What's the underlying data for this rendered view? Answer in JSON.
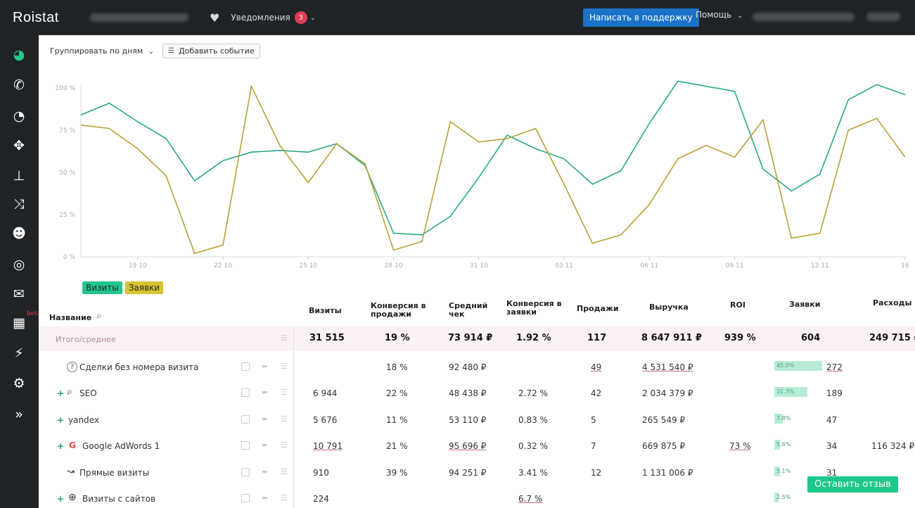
{
  "app": {
    "logo": "Roistat"
  },
  "topbar": {
    "notifications_label": "Уведомления",
    "notifications_count": "3",
    "support_label": "Написать в поддержку",
    "help_label": "Помощь"
  },
  "toolbar": {
    "group_by_label": "Группировать по дням",
    "add_event_label": "Добавить событие"
  },
  "sidebar": {
    "items": [
      {
        "name": "dashboard-icon",
        "glyph": "◕"
      },
      {
        "name": "phone-icon",
        "glyph": "✆"
      },
      {
        "name": "speedometer-icon",
        "glyph": "◔"
      },
      {
        "name": "crosshair-icon",
        "glyph": "✥"
      },
      {
        "name": "sitemap-icon",
        "glyph": "⊥"
      },
      {
        "name": "shuffle-icon",
        "glyph": "⤨"
      },
      {
        "name": "users-icon",
        "glyph": "☻"
      },
      {
        "name": "target-icon",
        "glyph": "◎"
      },
      {
        "name": "mail-icon",
        "glyph": "✉"
      },
      {
        "name": "report-icon",
        "glyph": "▦"
      },
      {
        "name": "plugin-icon",
        "glyph": "⚡"
      },
      {
        "name": "settings-icon",
        "glyph": "⚙"
      },
      {
        "name": "expand-icon",
        "glyph": "»"
      }
    ],
    "beta_label": "beta"
  },
  "colors": {
    "visits": "#2aa88a",
    "requests": "#b8a136",
    "accent": "#1ec78a"
  },
  "chart_data": {
    "type": "line",
    "x_tick_labels": [
      "19 10",
      "22 10",
      "25 10",
      "28 10",
      "31 10",
      "03 11",
      "06 11",
      "09 11",
      "12 11",
      "16"
    ],
    "y_tick_labels": [
      "100 %",
      "75 %",
      "50 %",
      "25 %",
      "0 %"
    ],
    "ylim": [
      0,
      100
    ],
    "series": [
      {
        "name": "Визиты",
        "color": "#2aa88a",
        "values": [
          84,
          91,
          80,
          70,
          45,
          57,
          62,
          63,
          62,
          67,
          54,
          14,
          13,
          24,
          47,
          72,
          64,
          58,
          43,
          51,
          79,
          104,
          101,
          98,
          52,
          39,
          49,
          93,
          102,
          96
        ]
      },
      {
        "name": "Заявки",
        "color": "#b8a136",
        "values": [
          78,
          76,
          64,
          48,
          2,
          7,
          101,
          66,
          44,
          67,
          55,
          4,
          9,
          80,
          68,
          70,
          76,
          43,
          8,
          13,
          31,
          58,
          66,
          59,
          81,
          11,
          14,
          75,
          82,
          59
        ]
      }
    ]
  },
  "legend": {
    "visits": "Визиты",
    "requests": "Заявки"
  },
  "table": {
    "name_header": "Название",
    "headers": {
      "visits": "Визиты",
      "conv_sales_1": "Конверсия в",
      "conv_sales_2": "продажи",
      "avg_check_1": "Средний",
      "avg_check_2": "чек",
      "conv_req_1": "Конверсия в",
      "conv_req_2": "заявки",
      "sales": "Продажи",
      "revenue": "Выручка",
      "roi": "ROI",
      "requests": "Заявки",
      "expenses": "Расходы"
    },
    "total": {
      "name": "Итого/среднее",
      "visits": "31 515",
      "conv_sales": "19 %",
      "avg_check": "73 914 ₽",
      "conv_req": "1.92 %",
      "sales": "117",
      "revenue": "8 647 911 ₽",
      "roi": "939 %",
      "requests": "604",
      "expenses": "249 715 ₽"
    },
    "rows": [
      {
        "name": "Сделки без номера визита",
        "visits": "",
        "conv_sales": "18 %",
        "avg_check": "92 480 ₽",
        "conv_req": "",
        "sales": "49",
        "revenue": "4 531 540 ₽",
        "roi": "",
        "req_pct": "45.0%",
        "req_share": 0.45,
        "requests": "272",
        "expenses": ""
      },
      {
        "name": "SEO",
        "visits": "6 944",
        "conv_sales": "22 %",
        "avg_check": "48 438 ₽",
        "conv_req": "2.72 %",
        "sales": "42",
        "revenue": "2 034 379 ₽",
        "roi": "",
        "req_pct": "31.3%",
        "req_share": 0.313,
        "requests": "189",
        "expenses": ""
      },
      {
        "name": "yandex",
        "visits": "5 676",
        "conv_sales": "11 %",
        "avg_check": "53 110 ₽",
        "conv_req": "0.83 %",
        "sales": "5",
        "revenue": "265 549 ₽",
        "roi": "",
        "req_pct": "7.8%",
        "req_share": 0.078,
        "requests": "47",
        "expenses": ""
      },
      {
        "name": "Google AdWords 1",
        "visits": "10 791",
        "conv_sales": "21 %",
        "avg_check": "95 696 ₽",
        "conv_req": "0.32 %",
        "sales": "7",
        "revenue": "669 875 ₽",
        "roi": "73 %",
        "req_pct": "5.6%",
        "req_share": 0.056,
        "requests": "34",
        "expenses": "116 324 ₽"
      },
      {
        "name": "Прямые визиты",
        "visits": "910",
        "conv_sales": "39 %",
        "avg_check": "94 251 ₽",
        "conv_req": "3.41 %",
        "sales": "12",
        "revenue": "1 131 006 ₽",
        "roi": "",
        "req_pct": "5.1%",
        "req_share": 0.051,
        "requests": "31",
        "expenses": ""
      },
      {
        "name": "Визиты с сайтов",
        "visits": "224",
        "conv_sales": "",
        "avg_check": "",
        "conv_req": "6.7 %",
        "sales": "",
        "revenue": "",
        "roi": "",
        "req_pct": "2.5%",
        "req_share": 0.025,
        "requests": "",
        "expenses": ""
      }
    ]
  },
  "feedback_label": "Оставить отзыв"
}
